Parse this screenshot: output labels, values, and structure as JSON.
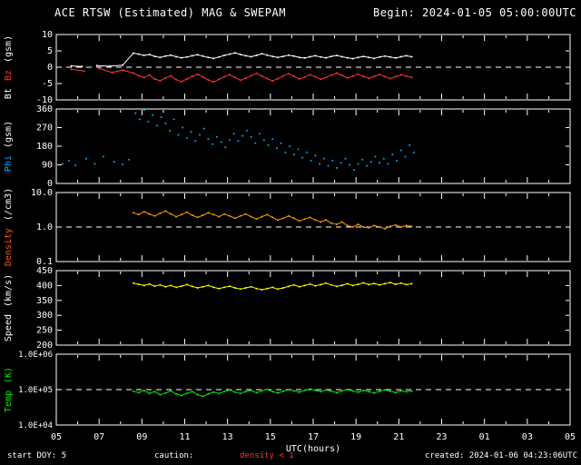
{
  "header": {
    "title": "ACE RTSW (Estimated) MAG & SWEPAM",
    "begin": "Begin: 2024-01-05 05:00:00UTC"
  },
  "footer": {
    "start_doy": "start DOY:  5",
    "caution_label": "caution:",
    "caution_value": "density < 1",
    "created": "created: 2024-01-06 04:23:06UTC"
  },
  "colors": {
    "background": "#000000",
    "frame": "#ffffff",
    "bt": "#ffffff",
    "bz": "#ff3333",
    "phi": "#00aaff",
    "density": "#ff9900",
    "speed": "#ffff00",
    "temp": "#00ee00",
    "caution": "#ff3333"
  },
  "xaxis": {
    "label": "UTC(hours)",
    "range": [
      5,
      29
    ],
    "tick_hours": [
      5,
      7,
      9,
      11,
      13,
      15,
      17,
      19,
      21,
      23,
      25,
      27,
      29
    ],
    "tick_labels": [
      "05",
      "07",
      "09",
      "11",
      "13",
      "15",
      "17",
      "19",
      "21",
      "23",
      "01",
      "03",
      "05"
    ]
  },
  "chart_data": [
    {
      "key": "bt-bz",
      "type": "line",
      "title": "Bt Bz (gsm)",
      "ylim": [
        -10,
        10
      ],
      "log": false,
      "dashed_at": 0,
      "yticks": [
        {
          "v": 10,
          "label": "10"
        },
        {
          "v": 5,
          "label": "5"
        },
        {
          "v": 0,
          "label": "0"
        },
        {
          "v": -5,
          "label": "-5"
        },
        {
          "v": -10,
          "label": "-10"
        }
      ],
      "ylabel_parts": [
        {
          "text": "Bt",
          "color": "#ffffff"
        },
        {
          "text": "Bz",
          "color": "#ff3333"
        },
        {
          "text": "(gsm)",
          "color": "#ffffff"
        }
      ],
      "series": [
        {
          "name": "Bt",
          "color": "#ffffff",
          "mode": "line",
          "points": [
            [
              5.7,
              0.4
            ],
            [
              6.2,
              0.2
            ],
            [
              6.9,
              0.5
            ],
            [
              7.5,
              0.3
            ],
            [
              8.1,
              0.6
            ]
          ],
          "grid": {
            "x0": 8.6,
            "dx": 0.25,
            "values": [
              4.3,
              4.0,
              3.6,
              3.9,
              3.3,
              3.0,
              3.4,
              3.7,
              3.2,
              2.9,
              3.1,
              3.5,
              3.8,
              3.4,
              3.0,
              2.7,
              3.1,
              3.6,
              4.0,
              4.4,
              3.9,
              3.5,
              3.2,
              3.6,
              4.1,
              3.7,
              3.3,
              3.0,
              3.3,
              3.7,
              3.4,
              3.0,
              2.8,
              3.2,
              3.5,
              3.1,
              2.9,
              3.3,
              3.6,
              3.2,
              2.9,
              2.6,
              3.0,
              3.3,
              3.0,
              2.7,
              3.1,
              3.4,
              3.1,
              2.8,
              3.2,
              3.5,
              3.2
            ]
          }
        },
        {
          "name": "Bz",
          "color": "#ff3333",
          "mode": "line",
          "points": [
            [
              5.7,
              -0.6
            ],
            [
              6.3,
              -1.2
            ],
            [
              7.0,
              -0.4
            ],
            [
              7.6,
              -1.6
            ],
            [
              8.1,
              -0.9
            ]
          ],
          "grid": {
            "x0": 8.6,
            "dx": 0.25,
            "values": [
              -1.8,
              -2.6,
              -3.2,
              -2.4,
              -3.6,
              -4.1,
              -3.3,
              -2.6,
              -3.8,
              -4.4,
              -3.6,
              -2.8,
              -2.2,
              -3.0,
              -3.9,
              -4.5,
              -3.7,
              -2.9,
              -2.3,
              -3.1,
              -4.0,
              -3.4,
              -2.6,
              -1.9,
              -2.7,
              -3.5,
              -4.2,
              -3.5,
              -2.7,
              -2.0,
              -2.8,
              -3.6,
              -3.0,
              -2.3,
              -2.9,
              -3.7,
              -3.1,
              -2.4,
              -1.8,
              -2.5,
              -3.3,
              -2.7,
              -2.1,
              -2.8,
              -3.4,
              -2.8,
              -2.2,
              -2.9,
              -3.5,
              -2.9,
              -2.3,
              -2.7,
              -3.1
            ]
          }
        }
      ]
    },
    {
      "key": "phi",
      "type": "scatter",
      "title": "Phi (gsm)",
      "ylim": [
        0,
        360
      ],
      "log": false,
      "dashed_at": null,
      "yticks": [
        {
          "v": 360,
          "label": "360"
        },
        {
          "v": 270,
          "label": "270"
        },
        {
          "v": 180,
          "label": "180"
        },
        {
          "v": 90,
          "label": "90"
        },
        {
          "v": 0,
          "label": "0"
        }
      ],
      "ylabel_parts": [
        {
          "text": "Phi",
          "color": "#00aaff"
        },
        {
          "text": "(gsm)",
          "color": "#ffffff"
        }
      ],
      "series": [
        {
          "name": "Phi",
          "color": "#00aaff",
          "mode": "dots",
          "points": [
            [
              5.3,
              95
            ],
            [
              5.6,
              110
            ],
            [
              5.9,
              88
            ],
            [
              6.4,
              120
            ],
            [
              6.8,
              95
            ],
            [
              7.2,
              130
            ],
            [
              7.7,
              105
            ],
            [
              8.1,
              92
            ],
            [
              8.4,
              115
            ],
            [
              8.7,
              340
            ],
            [
              8.9,
              310
            ],
            [
              9.1,
              355
            ],
            [
              9.3,
              300
            ],
            [
              9.5,
              330
            ],
            [
              9.7,
              280
            ],
            [
              9.9,
              320
            ],
            [
              10.1,
              290
            ],
            [
              10.3,
              255
            ],
            [
              10.5,
              310
            ],
            [
              10.7,
              235
            ],
            [
              10.9,
              270
            ],
            [
              11.1,
              220
            ],
            [
              11.3,
              250
            ],
            [
              11.5,
              205
            ],
            [
              11.7,
              235
            ],
            [
              11.9,
              265
            ],
            [
              12.1,
              215
            ],
            [
              12.3,
              190
            ],
            [
              12.5,
              225
            ],
            [
              12.7,
              200
            ],
            [
              12.9,
              175
            ],
            [
              13.1,
              210
            ],
            [
              13.3,
              240
            ],
            [
              13.5,
              205
            ],
            [
              13.7,
              230
            ],
            [
              13.9,
              255
            ],
            [
              14.1,
              225
            ],
            [
              14.3,
              195
            ],
            [
              14.5,
              240
            ],
            [
              14.7,
              210
            ],
            [
              14.9,
              185
            ],
            [
              15.1,
              215
            ],
            [
              15.3,
              170
            ],
            [
              15.5,
              195
            ],
            [
              15.7,
              150
            ],
            [
              15.9,
              180
            ],
            [
              16.1,
              140
            ],
            [
              16.3,
              165
            ],
            [
              16.5,
              125
            ],
            [
              16.7,
              150
            ],
            [
              16.9,
              110
            ],
            [
              17.1,
              135
            ],
            [
              17.3,
              95
            ],
            [
              17.5,
              120
            ],
            [
              17.7,
              85
            ],
            [
              17.9,
              110
            ],
            [
              18.1,
              75
            ],
            [
              18.3,
              100
            ],
            [
              18.5,
              120
            ],
            [
              18.7,
              90
            ],
            [
              18.9,
              65
            ],
            [
              19.1,
              95
            ],
            [
              19.3,
              115
            ],
            [
              19.5,
              85
            ],
            [
              19.7,
              105
            ],
            [
              19.9,
              130
            ],
            [
              20.1,
              100
            ],
            [
              20.3,
              120
            ],
            [
              20.5,
              95
            ],
            [
              20.7,
              140
            ],
            [
              20.9,
              110
            ],
            [
              21.1,
              160
            ],
            [
              21.3,
              130
            ],
            [
              21.5,
              185
            ],
            [
              21.7,
              150
            ]
          ]
        }
      ]
    },
    {
      "key": "density",
      "type": "line",
      "title": "Density (/cm3)",
      "ylim": [
        0.1,
        10
      ],
      "log": true,
      "dashed_at": 1.0,
      "yticks": [
        {
          "v": 10,
          "label": "10.0"
        },
        {
          "v": 1,
          "label": "1.0"
        },
        {
          "v": 0.1,
          "label": "0.1"
        }
      ],
      "ylabel_parts": [
        {
          "text": "Density",
          "color": "#ff5500"
        },
        {
          "text": "(/cm3)",
          "color": "#ffffff"
        }
      ],
      "series": [
        {
          "name": "Density",
          "color": "#ff9900",
          "mode": "line",
          "points": [],
          "grid": {
            "x0": 8.6,
            "dx": 0.25,
            "values": [
              2.6,
              2.3,
              2.8,
              2.4,
              2.1,
              2.5,
              2.9,
              2.4,
              2.0,
              2.3,
              2.7,
              2.2,
              1.9,
              2.2,
              2.6,
              2.3,
              2.0,
              2.4,
              2.1,
              1.8,
              2.1,
              2.4,
              2.0,
              1.7,
              2.0,
              2.3,
              1.9,
              1.6,
              1.8,
              2.1,
              1.8,
              1.5,
              1.7,
              1.9,
              1.6,
              1.4,
              1.6,
              1.3,
              1.2,
              1.4,
              1.1,
              1.0,
              1.2,
              1.0,
              0.95,
              1.1,
              1.0,
              0.9,
              1.05,
              1.15,
              1.0,
              1.1,
              1.05
            ]
          }
        }
      ]
    },
    {
      "key": "speed",
      "type": "line",
      "title": "Speed (km/s)",
      "ylim": [
        200,
        450
      ],
      "log": false,
      "dashed_at": null,
      "yticks": [
        {
          "v": 450,
          "label": "450"
        },
        {
          "v": 400,
          "label": "400"
        },
        {
          "v": 350,
          "label": "350"
        },
        {
          "v": 300,
          "label": "300"
        },
        {
          "v": 250,
          "label": "250"
        },
        {
          "v": 200,
          "label": "200"
        }
      ],
      "ylabel_parts": [
        {
          "text": "Speed",
          "color": "#ffffff"
        },
        {
          "text": "(km/s)",
          "color": "#ffffff"
        }
      ],
      "series": [
        {
          "name": "Speed",
          "color": "#ffff00",
          "mode": "line",
          "points": [],
          "grid": {
            "x0": 8.6,
            "dx": 0.25,
            "values": [
              408,
              404,
              400,
              405,
              398,
              402,
              396,
              400,
              394,
              398,
              403,
              397,
              392,
              396,
              400,
              394,
              390,
              394,
              398,
              392,
              388,
              392,
              396,
              390,
              386,
              390,
              394,
              388,
              392,
              397,
              402,
              396,
              400,
              405,
              399,
              403,
              408,
              402,
              397,
              401,
              406,
              400,
              404,
              409,
              403,
              407,
              402,
              406,
              410,
              404,
              408,
              403,
              406
            ]
          }
        }
      ]
    },
    {
      "key": "temp",
      "type": "line",
      "title": "Temp (K)",
      "ylim": [
        10000,
        1000000
      ],
      "log": true,
      "dashed_at": 100000,
      "tick_font": 9,
      "yticks": [
        {
          "v": 1000000,
          "label": "1.0E+06"
        },
        {
          "v": 100000,
          "label": "1.0E+05"
        },
        {
          "v": 10000,
          "label": "1.0E+04"
        }
      ],
      "ylabel_parts": [
        {
          "text": "Temp",
          "color": "#00ee00"
        },
        {
          "text": "(K)",
          "color": "#00ee00"
        }
      ],
      "series": [
        {
          "name": "Temp",
          "color": "#00ee00",
          "mode": "line",
          "points": [],
          "grid": {
            "x0": 8.6,
            "dx": 0.25,
            "values": [
              90000,
              82000,
              95000,
              78000,
              88000,
              72000,
              80000,
              92000,
              75000,
              68000,
              78000,
              88000,
              72000,
              65000,
              75000,
              85000,
              78000,
              88000,
              98000,
              85000,
              78000,
              88000,
              95000,
              82000,
              92000,
              102000,
              88000,
              80000,
              90000,
              100000,
              92000,
              85000,
              95000,
              105000,
              95000,
              88000,
              98000,
              90000,
              82000,
              92000,
              100000,
              92000,
              85000,
              95000,
              88000,
              80000,
              90000,
              98000,
              90000,
              83000,
              93000,
              87000,
              91000
            ]
          }
        }
      ]
    }
  ]
}
